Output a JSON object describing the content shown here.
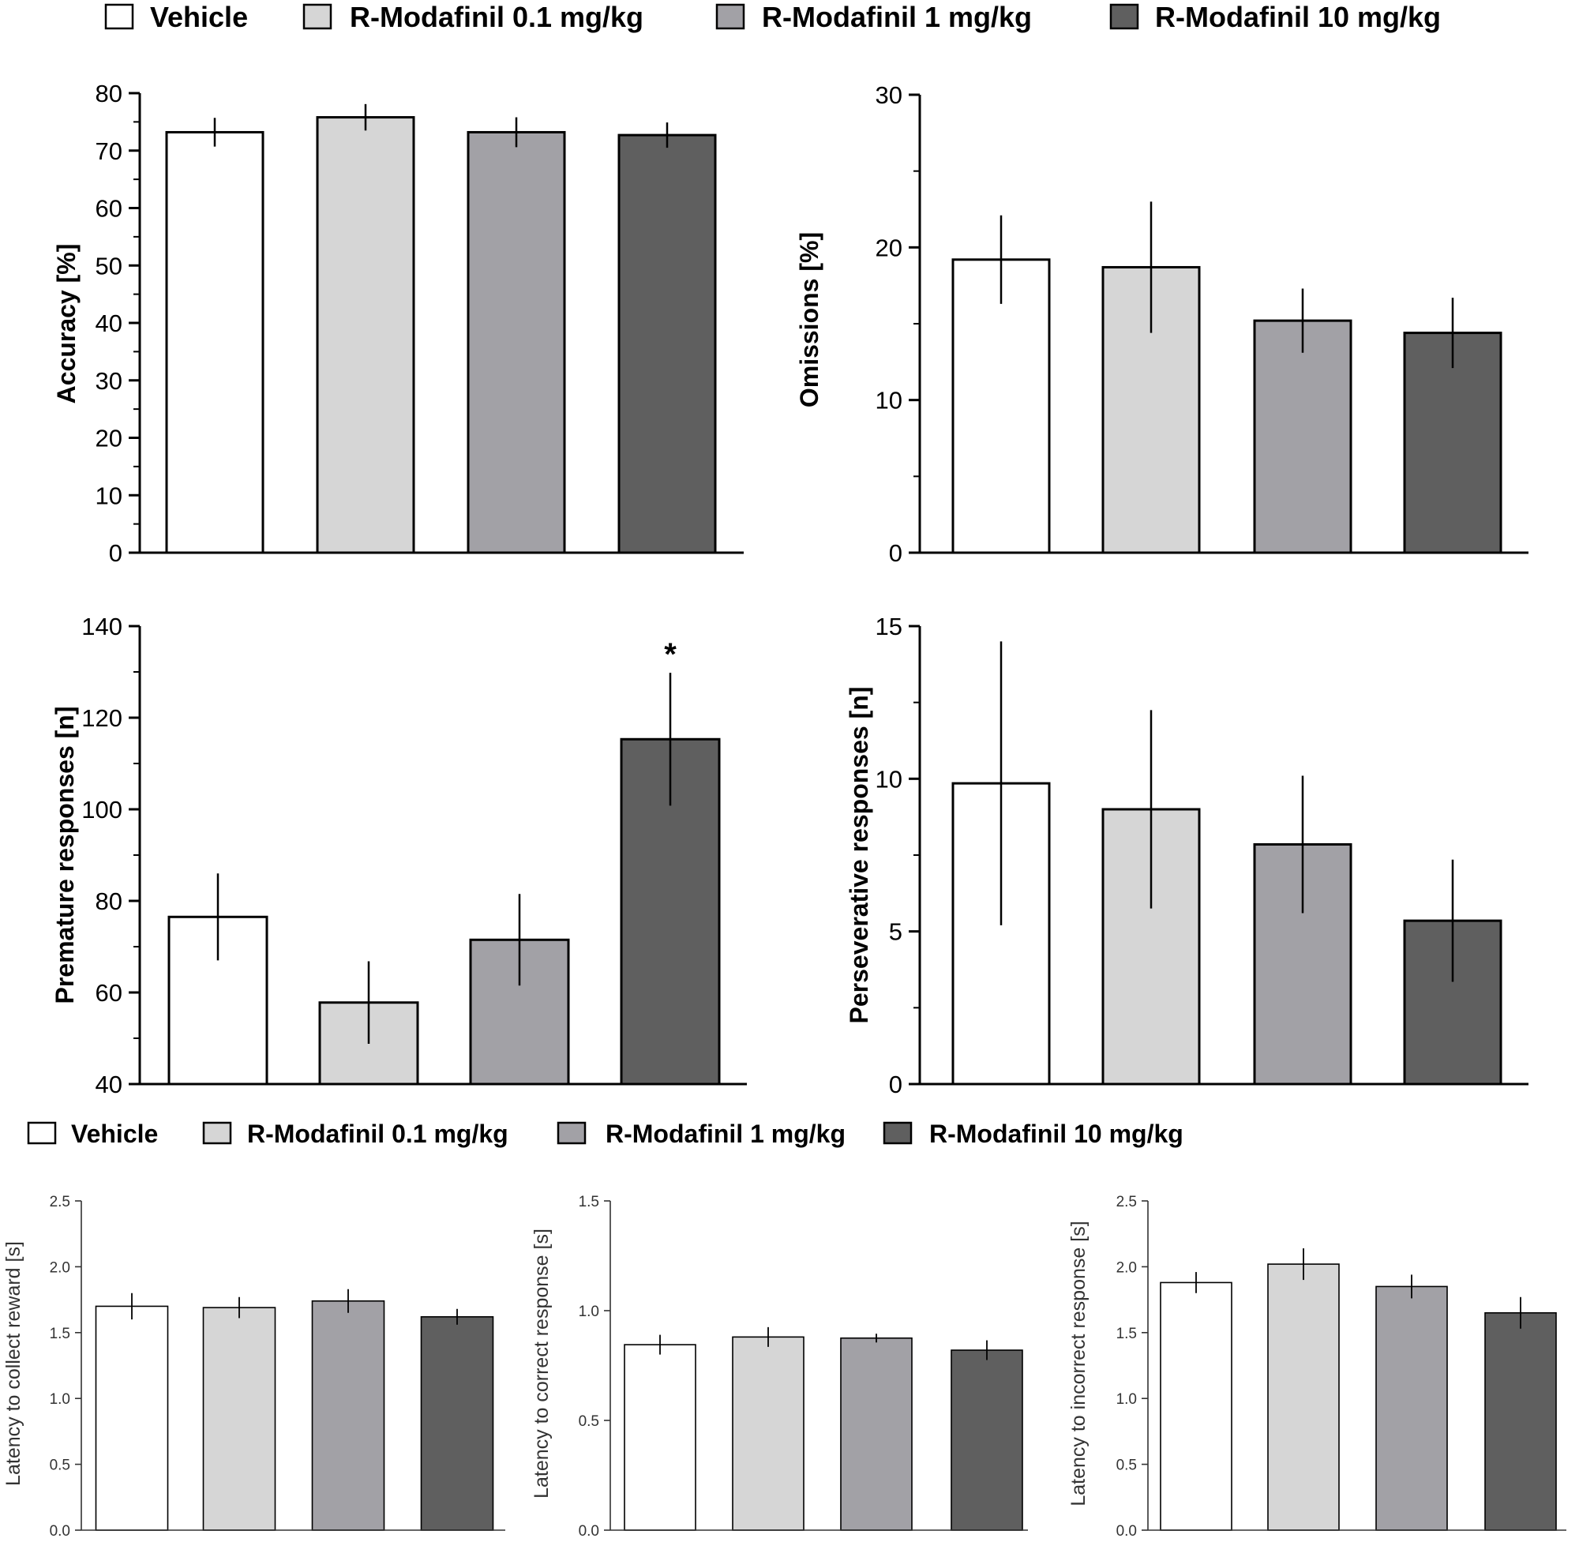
{
  "colors": {
    "vehicle": "#ffffff",
    "dose_0_1": "#d6d6d6",
    "dose_1": "#a2a1a6",
    "dose_10": "#5f5f5f",
    "outline": "#000000"
  },
  "legend": {
    "items": [
      {
        "label": "Vehicle",
        "color_key": "vehicle"
      },
      {
        "label": "R-Modafinil 0.1 mg/kg",
        "color_key": "dose_0_1"
      },
      {
        "label": "R-Modafinil 1 mg/kg",
        "color_key": "dose_1"
      },
      {
        "label": "R-Modafinil 10 mg/kg",
        "color_key": "dose_10"
      }
    ]
  },
  "chart_data": [
    {
      "id": "accuracy",
      "type": "bar",
      "categories": [
        "Vehicle",
        "R-Modafinil 0.1 mg/kg",
        "R-Modafinil 1 mg/kg",
        "R-Modafinil 10 mg/kg"
      ],
      "values": [
        73.2,
        75.8,
        73.2,
        72.7
      ],
      "errors": [
        2.5,
        2.3,
        2.6,
        2.2
      ],
      "ylabel": "Accuracy [%]",
      "ylim": [
        0,
        80
      ],
      "yticks": [
        0,
        10,
        20,
        30,
        40,
        50,
        60,
        70,
        80
      ],
      "tick_labels": [
        "0",
        "10",
        "20",
        "30",
        "40",
        "50",
        "60",
        "70",
        "80"
      ],
      "annotations": [
        "",
        "",
        "",
        ""
      ]
    },
    {
      "id": "omissions",
      "type": "bar",
      "categories": [
        "Vehicle",
        "R-Modafinil 0.1 mg/kg",
        "R-Modafinil 1 mg/kg",
        "R-Modafinil 10 mg/kg"
      ],
      "values": [
        19.2,
        18.7,
        15.2,
        14.4
      ],
      "errors": [
        2.9,
        4.3,
        2.1,
        2.3
      ],
      "ylabel": "Omissions [%]",
      "ylim": [
        0,
        30
      ],
      "yticks": [
        0,
        10,
        20,
        30
      ],
      "tick_labels": [
        "0",
        "10",
        "20",
        "30"
      ],
      "annotations": [
        "",
        "",
        "",
        ""
      ]
    },
    {
      "id": "premature",
      "type": "bar",
      "categories": [
        "Vehicle",
        "R-Modafinil 0.1 mg/kg",
        "R-Modafinil 1 mg/kg",
        "R-Modafinil 10 mg/kg"
      ],
      "values": [
        76.5,
        57.8,
        71.5,
        115.3
      ],
      "errors": [
        9.5,
        9.0,
        10.0,
        14.5
      ],
      "ylabel": "Premature responses [n]",
      "ylim": [
        40,
        140
      ],
      "yticks": [
        40,
        60,
        80,
        100,
        120,
        140
      ],
      "tick_labels": [
        "40",
        "60",
        "80",
        "100",
        "120",
        "140"
      ],
      "annotations": [
        "",
        "",
        "",
        "*"
      ]
    },
    {
      "id": "perseverative",
      "type": "bar",
      "categories": [
        "Vehicle",
        "R-Modafinil 0.1 mg/kg",
        "R-Modafinil 1 mg/kg",
        "R-Modafinil 10 mg/kg"
      ],
      "values": [
        9.85,
        9.0,
        7.85,
        5.35
      ],
      "errors": [
        4.65,
        3.25,
        2.25,
        2.0
      ],
      "ylabel": "Perseverative responses [n]",
      "ylim": [
        0,
        15
      ],
      "yticks": [
        0,
        5,
        10,
        15
      ],
      "tick_labels": [
        "0",
        "5",
        "10",
        "15"
      ],
      "annotations": [
        "",
        "",
        "",
        ""
      ]
    },
    {
      "id": "latency_reward",
      "type": "bar",
      "categories": [
        "Vehicle",
        "R-Modafinil 0.1 mg/kg",
        "R-Modafinil 1 mg/kg",
        "R-Modafinil 10 mg/kg"
      ],
      "values": [
        1.7,
        1.69,
        1.74,
        1.62
      ],
      "errors": [
        0.1,
        0.08,
        0.09,
        0.06
      ],
      "ylabel": "Latency to collect reward [s]",
      "ylim": [
        0,
        2.5
      ],
      "yticks": [
        0,
        0.5,
        1.0,
        1.5,
        2.0,
        2.5
      ],
      "tick_labels": [
        "0.0",
        "0.5",
        "1.0",
        "1.5",
        "2.0",
        "2.5"
      ],
      "annotations": [
        "",
        "",
        "",
        ""
      ]
    },
    {
      "id": "latency_correct",
      "type": "bar",
      "categories": [
        "Vehicle",
        "R-Modafinil 0.1 mg/kg",
        "R-Modafinil 1 mg/kg",
        "R-Modafinil 10 mg/kg"
      ],
      "values": [
        0.845,
        0.88,
        0.875,
        0.82
      ],
      "errors": [
        0.045,
        0.045,
        0.02,
        0.045
      ],
      "ylabel": "Latency to correct response [s]",
      "ylim": [
        0,
        1.5
      ],
      "yticks": [
        0,
        0.5,
        1.0,
        1.5
      ],
      "tick_labels": [
        "0.0",
        "0.5",
        "1.0",
        "1.5"
      ],
      "annotations": [
        "",
        "",
        "",
        ""
      ]
    },
    {
      "id": "latency_incorrect",
      "type": "bar",
      "categories": [
        "Vehicle",
        "R-Modafinil 0.1 mg/kg",
        "R-Modafinil 1 mg/kg",
        "R-Modafinil 10 mg/kg"
      ],
      "values": [
        1.88,
        2.02,
        1.85,
        1.65
      ],
      "errors": [
        0.08,
        0.12,
        0.09,
        0.12
      ],
      "ylabel": "Latency to incorrect response [s]",
      "ylim": [
        0,
        2.5
      ],
      "yticks": [
        0,
        0.5,
        1.0,
        1.5,
        2.0,
        2.5
      ],
      "tick_labels": [
        "0.0",
        "0.5",
        "1.0",
        "1.5",
        "2.0",
        "2.5"
      ],
      "annotations": [
        "",
        "",
        "",
        ""
      ]
    }
  ]
}
